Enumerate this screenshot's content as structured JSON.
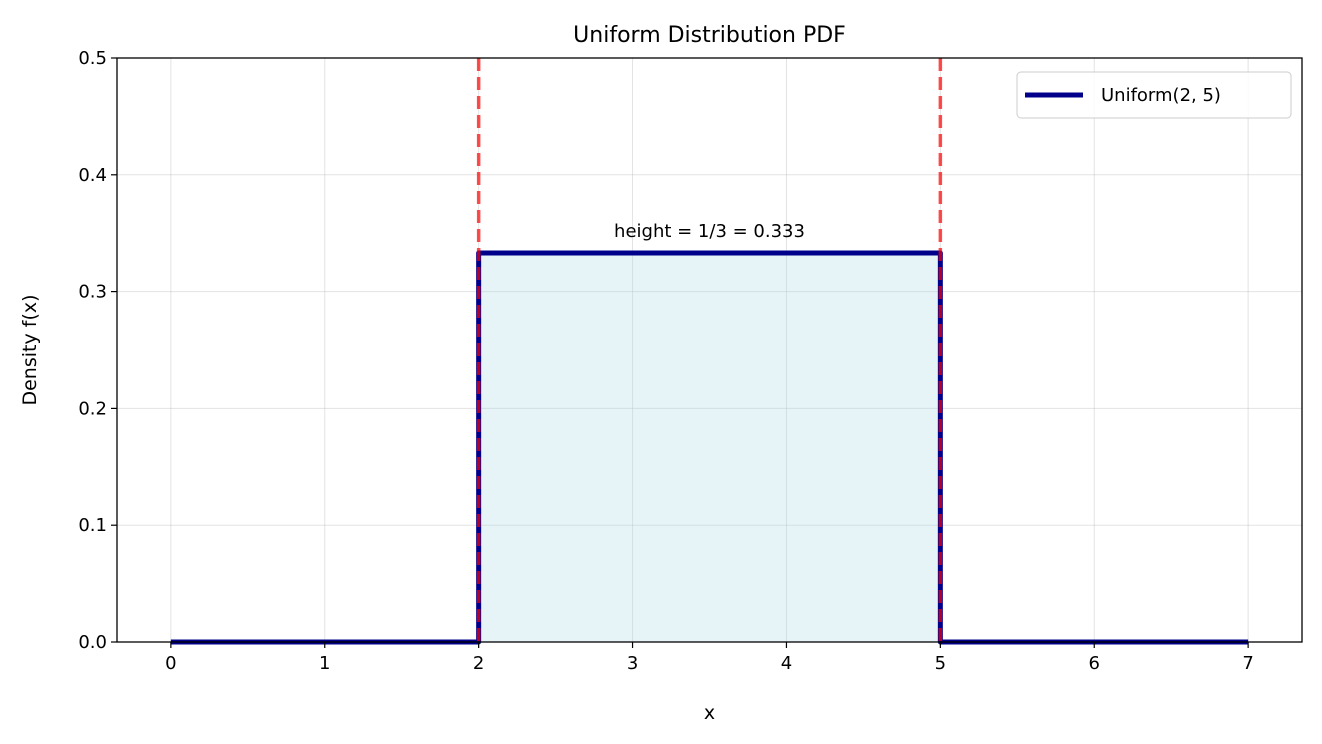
{
  "chart_data": {
    "type": "line",
    "title": "Uniform Distribution PDF",
    "xlabel": "x",
    "ylabel": "Density f(x)",
    "xlim": [
      -0.35,
      7.35
    ],
    "ylim": [
      0,
      0.5
    ],
    "xticks": [
      0,
      1,
      2,
      3,
      4,
      5,
      6,
      7
    ],
    "yticks": [
      0.0,
      0.1,
      0.2,
      0.3,
      0.4,
      0.5
    ],
    "xtick_labels": [
      "0",
      "1",
      "2",
      "3",
      "4",
      "5",
      "6",
      "7"
    ],
    "ytick_labels": [
      "0.0",
      "0.1",
      "0.2",
      "0.3",
      "0.4",
      "0.5"
    ],
    "grid": true,
    "legend_position": "top-right",
    "series": [
      {
        "name": "Uniform(2, 5)",
        "color": "#00008b",
        "x": [
          0,
          2,
          2,
          5,
          5,
          7
        ],
        "y": [
          0,
          0,
          0.333,
          0.333,
          0,
          0
        ]
      }
    ],
    "fill": {
      "x_from": 2,
      "x_to": 5,
      "y": 0.333,
      "color": "#add8e6"
    },
    "vlines": [
      {
        "x": 2,
        "color": "#ff0000"
      },
      {
        "x": 5,
        "color": "#ff0000"
      }
    ],
    "annotation": {
      "text": "height = 1/3 = 0.333",
      "x": 3.5,
      "y": 0.35
    }
  }
}
